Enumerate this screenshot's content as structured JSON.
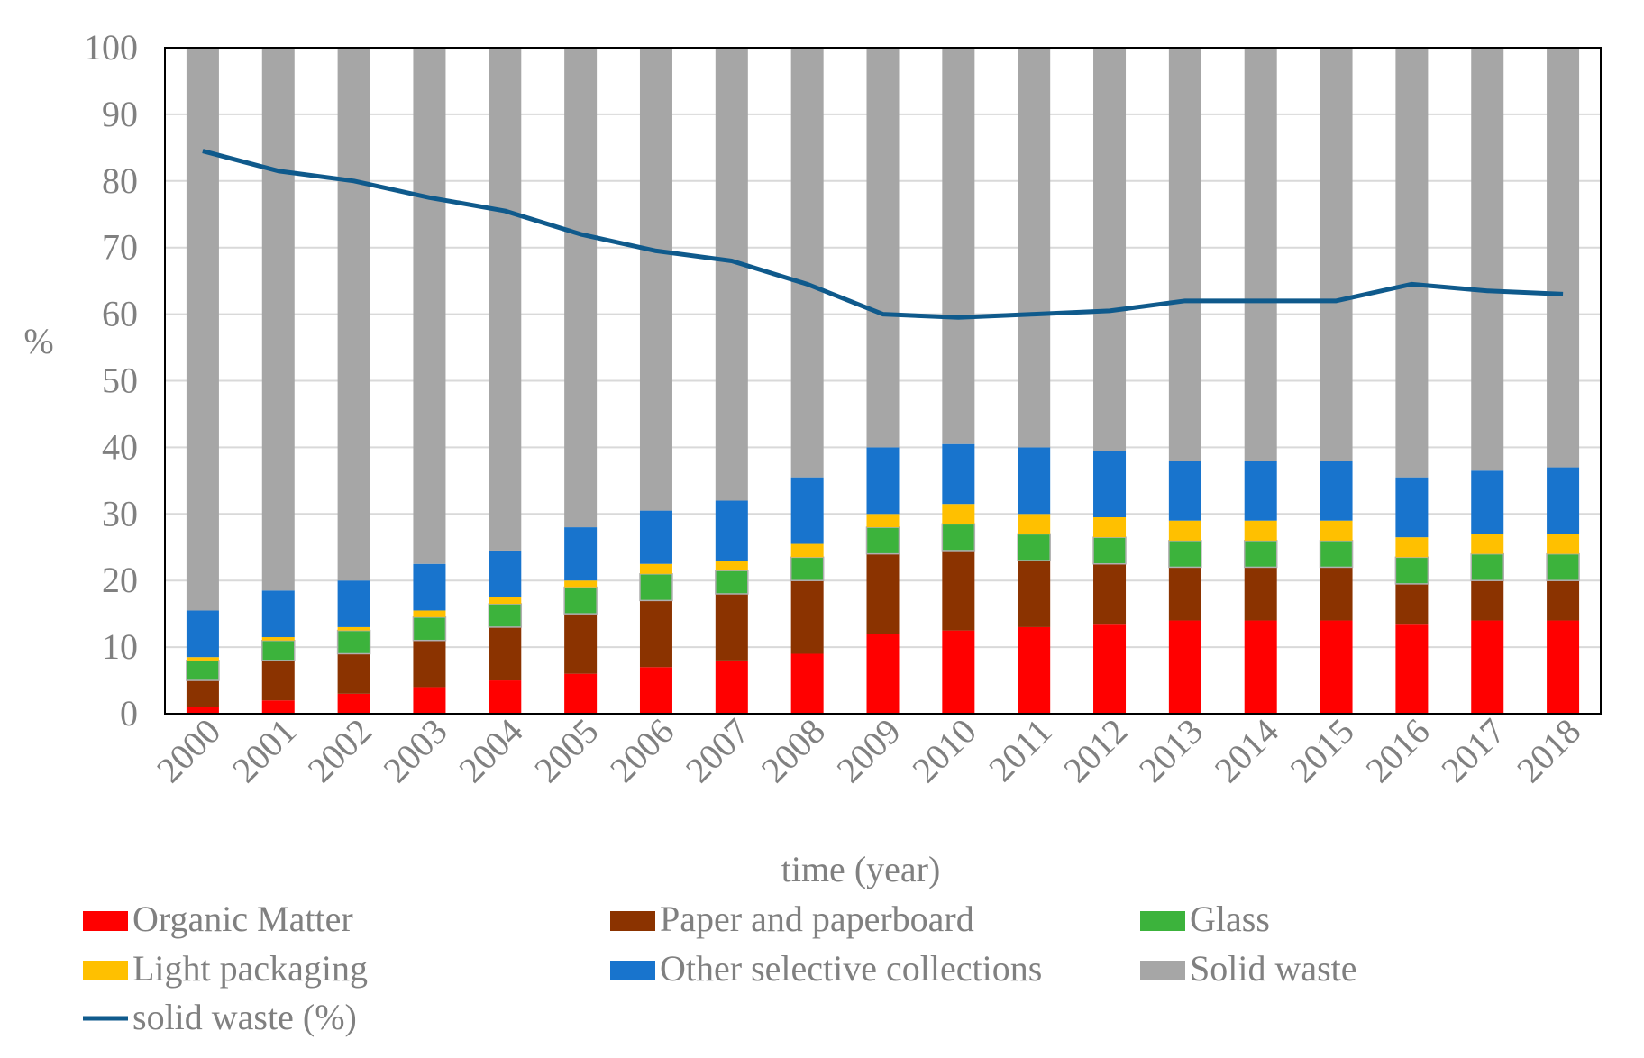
{
  "chart_data": {
    "type": "bar",
    "stacked": true,
    "categories": [
      "2000",
      "2001",
      "2002",
      "2003",
      "2004",
      "2005",
      "2006",
      "2007",
      "2008",
      "2009",
      "2010",
      "2011",
      "2012",
      "2013",
      "2014",
      "2015",
      "2016",
      "2017",
      "2018"
    ],
    "xlabel": "time (year)",
    "ylabel": "%",
    "ylim": [
      0,
      100
    ],
    "yticks": [
      "0",
      "10",
      "20",
      "30",
      "40",
      "50",
      "60",
      "70",
      "80",
      "90",
      "100"
    ],
    "grid": true,
    "legend_position": "bottom",
    "series": [
      {
        "name": "Organic Matter",
        "color": "#ff0000",
        "values": [
          1,
          2,
          3,
          4,
          5,
          6,
          7,
          8,
          9,
          12,
          12.5,
          13,
          13.5,
          14,
          14,
          14,
          13.5,
          14,
          14
        ]
      },
      {
        "name": "Paper and paperboard",
        "color": "#8b3300",
        "values": [
          4,
          6,
          6,
          7,
          8,
          9,
          10,
          10,
          11,
          12,
          12,
          10,
          9,
          8,
          8,
          8,
          6,
          6,
          6
        ]
      },
      {
        "name": "Glass",
        "color": "#3cb33c",
        "values": [
          3,
          3,
          3.5,
          3.5,
          3.5,
          4,
          4,
          3.5,
          3.5,
          4,
          4,
          4,
          4,
          4,
          4,
          4,
          4,
          4,
          4
        ]
      },
      {
        "name": "Light packaging",
        "color": "#ffc000",
        "values": [
          0.5,
          0.5,
          0.5,
          1,
          1,
          1,
          1.5,
          1.5,
          2,
          2,
          3,
          3,
          3,
          3,
          3,
          3,
          3,
          3,
          3
        ]
      },
      {
        "name": "Other selective collections",
        "color": "#1874cd",
        "values": [
          7,
          7,
          7,
          7,
          7,
          8,
          8,
          9,
          10,
          10,
          9,
          10,
          10,
          9,
          9,
          9,
          9,
          9.5,
          10
        ]
      },
      {
        "name": "Solid waste",
        "color": "#a6a6a6",
        "values": [
          84.5,
          81.5,
          80,
          77.5,
          75.5,
          72,
          69.5,
          68,
          64.5,
          60,
          59.5,
          60,
          60.5,
          62,
          62,
          62,
          64.5,
          63.5,
          63
        ]
      }
    ],
    "line_series": {
      "name": "solid waste (%)",
      "color": "#0f5a8c",
      "values": [
        84.5,
        81.5,
        80,
        77.5,
        75.5,
        72,
        69.5,
        68,
        64.5,
        60,
        59.5,
        60,
        60.5,
        62,
        62,
        62,
        64.5,
        63.5,
        63
      ]
    }
  }
}
